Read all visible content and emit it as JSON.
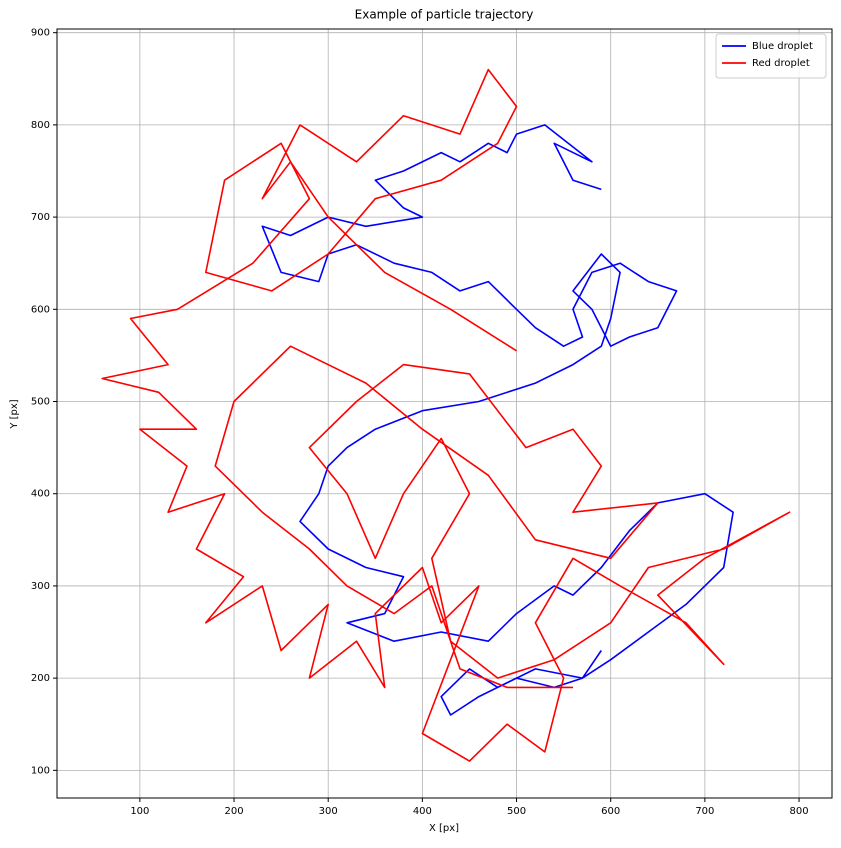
{
  "chart_data": {
    "type": "line",
    "title": "Example of particle trajectory",
    "x_label": "X [px]",
    "y_label": "Y [px]",
    "xlim": [
      12,
      835
    ],
    "ylim": [
      70,
      904
    ],
    "xticks": [
      100,
      200,
      300,
      400,
      500,
      600,
      700,
      800
    ],
    "yticks": [
      100,
      200,
      300,
      400,
      500,
      600,
      700,
      800,
      900
    ],
    "grid": true,
    "legend": "upper right",
    "series": [
      {
        "name": "Blue droplet",
        "color": "#0000ff",
        "x": [
          590,
          560,
          540,
          580,
          530,
          500,
          490,
          470,
          440,
          420,
          380,
          350,
          380,
          400,
          340,
          300,
          260,
          230,
          250,
          290,
          300,
          330,
          370,
          410,
          440,
          470,
          500,
          520,
          550,
          570,
          560,
          580,
          610,
          640,
          670,
          650,
          620,
          600,
          580,
          560,
          590,
          610,
          600,
          590,
          560,
          520,
          460,
          400,
          350,
          320,
          300,
          290,
          270,
          300,
          340,
          380,
          360,
          320,
          370,
          420,
          470,
          500,
          540,
          560,
          590,
          620,
          650,
          700,
          730,
          720,
          700,
          680,
          640,
          600,
          570,
          540,
          500,
          460,
          430,
          420,
          450,
          480,
          520,
          570,
          590
        ],
        "values": [
          730,
          740,
          780,
          760,
          800,
          790,
          770,
          780,
          760,
          770,
          750,
          740,
          710,
          700,
          690,
          700,
          680,
          690,
          640,
          630,
          660,
          670,
          650,
          640,
          620,
          630,
          600,
          580,
          560,
          570,
          600,
          640,
          650,
          630,
          620,
          580,
          570,
          560,
          600,
          620,
          660,
          640,
          590,
          560,
          540,
          520,
          500,
          490,
          470,
          450,
          430,
          400,
          370,
          340,
          320,
          310,
          270,
          260,
          240,
          250,
          240,
          270,
          300,
          290,
          320,
          360,
          390,
          400,
          380,
          320,
          300,
          280,
          250,
          220,
          200,
          190,
          200,
          180,
          160,
          180,
          210,
          190,
          210,
          200,
          230
        ]
      },
      {
        "name": "Red droplet",
        "color": "#ff0000",
        "x": [
          500,
          430,
          360,
          300,
          260,
          230,
          270,
          330,
          380,
          440,
          470,
          500,
          480,
          420,
          350,
          300,
          240,
          170,
          190,
          250,
          280,
          220,
          140,
          90,
          130,
          60,
          120,
          160,
          100,
          150,
          130,
          190,
          160,
          210,
          170,
          230,
          250,
          300,
          280,
          330,
          360,
          350,
          400,
          420,
          460,
          430,
          400,
          450,
          490,
          530,
          550,
          520,
          560,
          610,
          680,
          720,
          650,
          700,
          790,
          720,
          640,
          600,
          540,
          480,
          430,
          410,
          450,
          420,
          380,
          350,
          320,
          280,
          330,
          380,
          450,
          510,
          560,
          590,
          560,
          650,
          600,
          520,
          470,
          400,
          340,
          260,
          200,
          180,
          230,
          280,
          320,
          370,
          410,
          440,
          490,
          560
        ],
        "values": [
          555,
          600,
          640,
          700,
          760,
          720,
          800,
          760,
          810,
          790,
          860,
          820,
          780,
          740,
          720,
          660,
          620,
          640,
          740,
          780,
          720,
          650,
          600,
          590,
          540,
          525,
          510,
          470,
          470,
          430,
          380,
          400,
          340,
          310,
          260,
          300,
          230,
          280,
          200,
          240,
          190,
          270,
          320,
          260,
          300,
          220,
          140,
          110,
          150,
          120,
          200,
          260,
          330,
          300,
          260,
          215,
          290,
          330,
          380,
          340,
          320,
          260,
          220,
          200,
          240,
          330,
          400,
          460,
          400,
          330,
          400,
          450,
          500,
          540,
          530,
          450,
          470,
          430,
          380,
          390,
          330,
          350,
          420,
          470,
          520,
          560,
          500,
          430,
          380,
          340,
          300,
          270,
          300,
          210,
          190,
          190
        ]
      }
    ]
  }
}
